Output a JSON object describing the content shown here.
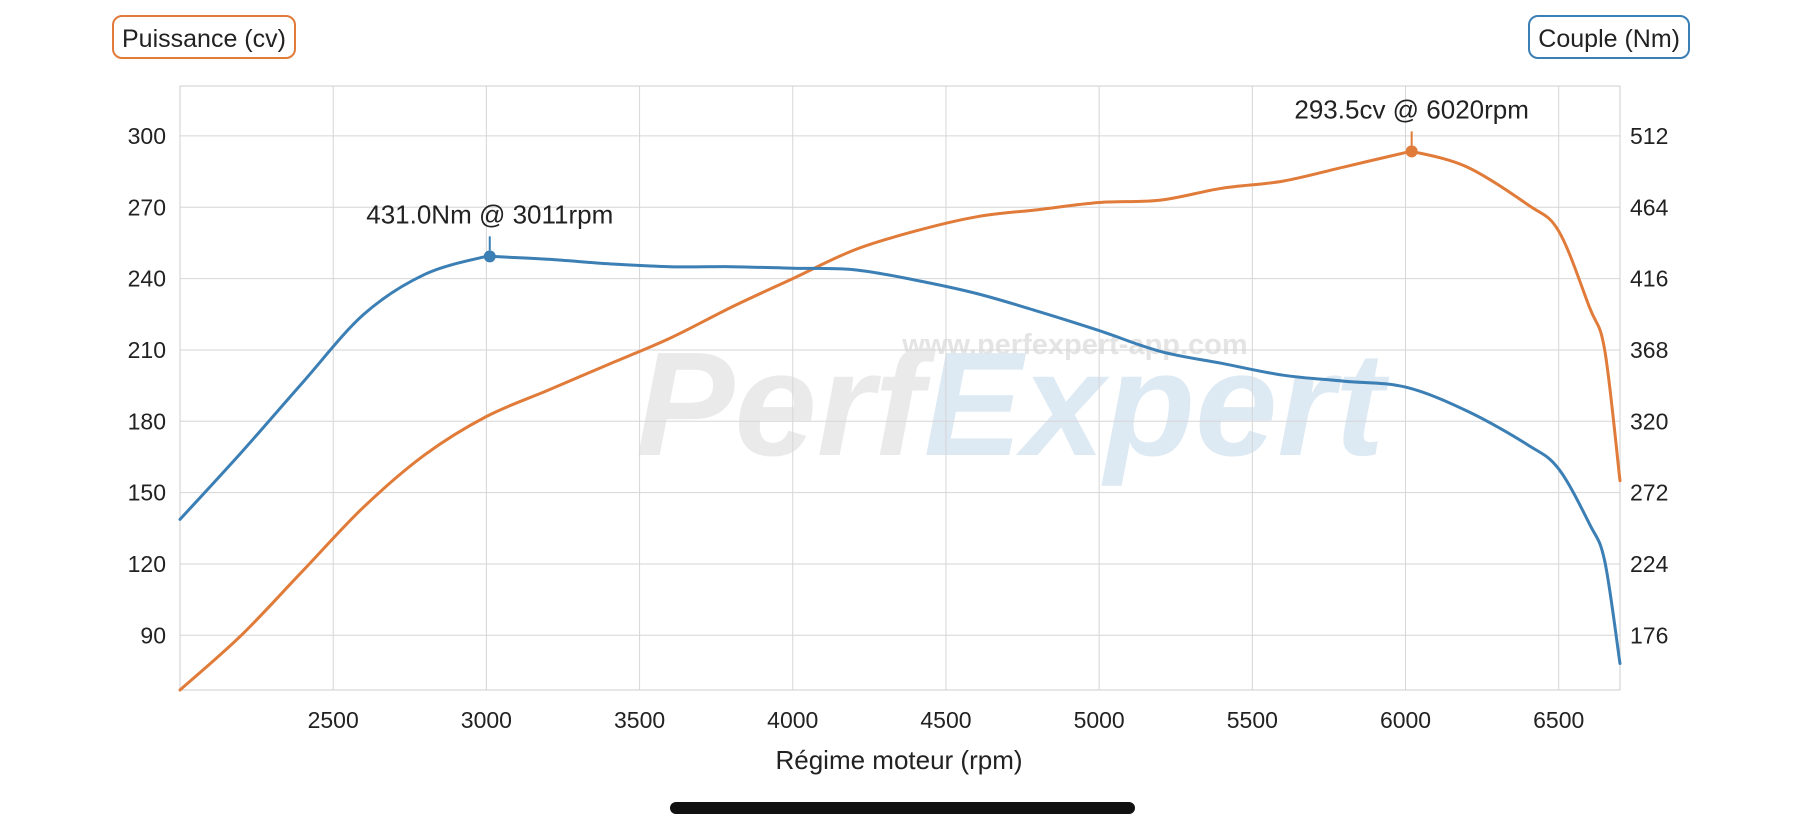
{
  "legend": {
    "power_label": "Puissance (cv)",
    "torque_label": "Couple (Nm)",
    "power_color": "#e07b39",
    "torque_color": "#3b7fb5"
  },
  "watermark": {
    "url": "www.perfexpert-app.com",
    "brand_a": "Perf",
    "brand_b": "Expert"
  },
  "chart_data": {
    "type": "line",
    "xlabel": "Régime moteur (rpm)",
    "x_ticks": [
      2500,
      3000,
      3500,
      4000,
      4500,
      5000,
      5500,
      6000,
      6500
    ],
    "xlim": [
      2000,
      6700
    ],
    "y_left": {
      "label": "Puissance (cv)",
      "ticks": [
        90,
        120,
        150,
        180,
        210,
        240,
        270,
        300
      ],
      "range": [
        67,
        321
      ]
    },
    "y_right": {
      "label": "Couple (Nm)",
      "ticks": [
        176,
        224,
        272,
        320,
        368,
        416,
        464,
        512
      ],
      "range": [
        139.2,
        545.6
      ]
    },
    "grid": true,
    "series": [
      {
        "name": "Puissance (cv)",
        "axis": "left",
        "color": "#e07b39",
        "x": [
          2000,
          2200,
          2400,
          2600,
          2800,
          3000,
          3200,
          3400,
          3600,
          3800,
          4000,
          4200,
          4400,
          4600,
          4800,
          5000,
          5200,
          5400,
          5600,
          5800,
          6000,
          6020,
          6200,
          6400,
          6500,
          6600,
          6650,
          6700
        ],
        "y": [
          67,
          90,
          117,
          144,
          166,
          182,
          193,
          204,
          215,
          228,
          240,
          252,
          260,
          266,
          269,
          272,
          273,
          278,
          281,
          287,
          293,
          293.5,
          287,
          271,
          260,
          228,
          210,
          155
        ]
      },
      {
        "name": "Couple (Nm)",
        "axis": "right",
        "color": "#3b7fb5",
        "x": [
          2000,
          2200,
          2400,
          2600,
          2800,
          3000,
          3011,
          3200,
          3400,
          3600,
          3800,
          4000,
          4200,
          4400,
          4600,
          4800,
          5000,
          5200,
          5400,
          5600,
          5800,
          6000,
          6200,
          6400,
          6500,
          6600,
          6650,
          6700
        ],
        "y": [
          254,
          299,
          346,
          392,
          419,
          431,
          431,
          429,
          426,
          424,
          424,
          423,
          422,
          415,
          406,
          394,
          381,
          367,
          359,
          351,
          347,
          343,
          327,
          304,
          288,
          251,
          226,
          157
        ]
      }
    ],
    "annotations": [
      {
        "text": "431.0Nm @ 3011rpm",
        "series": "Couple (Nm)",
        "x": 3011,
        "y": 431.0
      },
      {
        "text": "293.5cv @ 6020rpm",
        "series": "Puissance (cv)",
        "x": 6020,
        "y": 293.5
      }
    ]
  }
}
